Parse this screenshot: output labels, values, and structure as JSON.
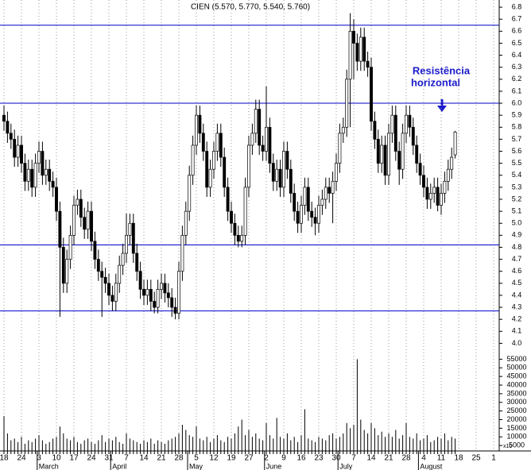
{
  "chart_data": {
    "type": "candlestick",
    "title": "CIEN (5.570, 5.770, 5.540, 5.760)",
    "annotation": [
      "Resistência",
      "horizontal"
    ],
    "volume_unit": "x10",
    "up_color": "#ffffff",
    "down_color": "#000000",
    "line_color": "#0000cc",
    "annotation_color": "#1a1acc",
    "categories": [
      "18",
      null,
      null,
      null,
      null,
      "24",
      null,
      null,
      null,
      null,
      "3",
      null,
      null,
      null,
      null,
      "10",
      null,
      null,
      null,
      null,
      "17",
      null,
      null,
      null,
      null,
      "24",
      null,
      null,
      null,
      null,
      "31",
      null,
      null,
      null,
      null,
      "7",
      null,
      null,
      null,
      null,
      "14",
      null,
      null,
      null,
      null,
      "21",
      null,
      null,
      null,
      null,
      "28",
      null,
      null,
      null,
      null,
      "5",
      null,
      null,
      null,
      null,
      "12",
      null,
      null,
      null,
      null,
      "19",
      null,
      null,
      null,
      null,
      "27",
      null,
      null,
      null,
      null,
      "2",
      null,
      null,
      null,
      null,
      "9",
      null,
      null,
      null,
      null,
      "16",
      null,
      null,
      null,
      null,
      "23",
      null,
      null,
      null,
      null,
      "30",
      null,
      null,
      null,
      null,
      "7",
      null,
      null,
      null,
      null,
      "14",
      null,
      null,
      null,
      null,
      "21",
      null,
      null,
      null,
      null,
      "28",
      null,
      null,
      null,
      null,
      "4",
      null,
      null,
      null,
      null,
      "11",
      null,
      null,
      null,
      null,
      "18",
      null,
      null,
      null,
      null,
      "25",
      null,
      null,
      null,
      null,
      "1"
    ],
    "months": [
      null,
      null,
      null,
      null,
      null,
      null,
      null,
      null,
      null,
      null,
      "March",
      null,
      null,
      null,
      null,
      null,
      null,
      null,
      null,
      null,
      null,
      null,
      null,
      null,
      null,
      null,
      null,
      null,
      null,
      null,
      null,
      "April",
      null,
      null,
      null,
      null,
      null,
      null,
      null,
      null,
      null,
      null,
      null,
      null,
      null,
      null,
      null,
      null,
      null,
      null,
      null,
      null,
      null,
      "May",
      null,
      null,
      null,
      null,
      null,
      null,
      null,
      null,
      null,
      null,
      null,
      null,
      null,
      null,
      null,
      null,
      null,
      null,
      null,
      null,
      null,
      "June",
      null,
      null,
      null,
      null,
      null,
      null,
      null,
      null,
      null,
      null,
      null,
      null,
      null,
      null,
      null,
      null,
      null,
      null,
      null,
      null,
      "July",
      null,
      null,
      null,
      null,
      null,
      null,
      null,
      null,
      null,
      null,
      null,
      null,
      null,
      null,
      null,
      null,
      null,
      null,
      null,
      null,
      null,
      null,
      "August",
      null,
      null,
      null,
      null,
      null,
      null,
      null,
      null,
      null,
      null,
      null,
      null,
      null,
      null,
      null,
      null,
      null,
      null,
      null,
      null,
      null
    ],
    "ohlc": [
      [
        5.9,
        5.98,
        5.77,
        5.85
      ],
      [
        5.85,
        5.93,
        5.67,
        5.75
      ],
      [
        5.75,
        5.83,
        5.62,
        5.7
      ],
      [
        5.7,
        5.78,
        5.47,
        5.55
      ],
      [
        5.55,
        5.73,
        5.47,
        5.65
      ],
      [
        5.65,
        5.73,
        5.42,
        5.5
      ],
      [
        5.5,
        5.58,
        5.27,
        5.35
      ],
      [
        5.35,
        5.53,
        5.27,
        5.45
      ],
      [
        5.45,
        5.53,
        5.22,
        5.3
      ],
      [
        5.3,
        5.58,
        5.22,
        5.5
      ],
      [
        5.5,
        5.68,
        5.42,
        5.6
      ],
      [
        5.6,
        5.68,
        5.32,
        5.4
      ],
      [
        5.4,
        5.53,
        5.32,
        5.45
      ],
      [
        5.45,
        5.53,
        5.27,
        5.35
      ],
      [
        5.35,
        5.43,
        5.22,
        5.3
      ],
      [
        5.3,
        5.38,
        5.02,
        5.1
      ],
      [
        5.1,
        5.18,
        4.22,
        4.8
      ],
      [
        4.8,
        4.88,
        4.42,
        4.5
      ],
      [
        4.5,
        4.78,
        4.42,
        4.7
      ],
      [
        4.7,
        4.98,
        4.62,
        4.9
      ],
      [
        4.9,
        5.23,
        4.82,
        5.15
      ],
      [
        5.15,
        5.28,
        5.07,
        5.2
      ],
      [
        5.2,
        5.28,
        4.97,
        5.05
      ],
      [
        5.05,
        5.13,
        4.87,
        4.95
      ],
      [
        4.95,
        5.18,
        4.87,
        5.1
      ],
      [
        5.1,
        5.18,
        4.77,
        4.85
      ],
      [
        4.85,
        4.93,
        4.62,
        4.7
      ],
      [
        4.7,
        4.78,
        4.52,
        4.6
      ],
      [
        4.6,
        4.68,
        4.22,
        4.55
      ],
      [
        4.55,
        4.63,
        4.42,
        4.5
      ],
      [
        4.5,
        4.58,
        4.32,
        4.4
      ],
      [
        4.4,
        4.48,
        4.27,
        4.35
      ],
      [
        4.35,
        4.58,
        4.27,
        4.5
      ],
      [
        4.5,
        4.73,
        4.42,
        4.65
      ],
      [
        4.65,
        4.83,
        4.57,
        4.75
      ],
      [
        4.75,
        5.08,
        4.67,
        4.9
      ],
      [
        4.9,
        5.08,
        4.82,
        5.0
      ],
      [
        5.0,
        5.08,
        4.67,
        4.75
      ],
      [
        4.75,
        4.83,
        4.52,
        4.6
      ],
      [
        4.6,
        4.68,
        4.37,
        4.45
      ],
      [
        4.45,
        4.53,
        4.32,
        4.4
      ],
      [
        4.4,
        4.53,
        4.32,
        4.45
      ],
      [
        4.45,
        4.53,
        4.27,
        4.35
      ],
      [
        4.35,
        4.43,
        4.25,
        4.3
      ],
      [
        4.3,
        4.53,
        4.25,
        4.45
      ],
      [
        4.45,
        4.58,
        4.37,
        4.5
      ],
      [
        4.5,
        4.58,
        4.34,
        4.42
      ],
      [
        4.42,
        4.5,
        4.3,
        4.38
      ],
      [
        4.38,
        4.46,
        4.22,
        4.3
      ],
      [
        4.3,
        4.38,
        4.2,
        4.25
      ],
      [
        4.25,
        4.68,
        4.2,
        4.6
      ],
      [
        4.6,
        4.98,
        4.52,
        4.9
      ],
      [
        4.9,
        5.18,
        4.82,
        5.1
      ],
      [
        5.1,
        5.48,
        5.02,
        5.4
      ],
      [
        5.4,
        5.73,
        5.32,
        5.65
      ],
      [
        5.65,
        5.98,
        5.57,
        5.9
      ],
      [
        5.9,
        5.98,
        5.67,
        5.75
      ],
      [
        5.75,
        5.83,
        5.52,
        5.6
      ],
      [
        5.6,
        5.68,
        5.22,
        5.3
      ],
      [
        5.3,
        5.53,
        5.22,
        5.45
      ],
      [
        5.45,
        5.68,
        5.37,
        5.6
      ],
      [
        5.6,
        5.83,
        5.52,
        5.75
      ],
      [
        5.75,
        5.83,
        5.47,
        5.55
      ],
      [
        5.55,
        5.63,
        5.22,
        5.3
      ],
      [
        5.3,
        5.38,
        5.02,
        5.1
      ],
      [
        5.1,
        5.18,
        4.92,
        5.0
      ],
      [
        5.0,
        5.08,
        4.82,
        4.9
      ],
      [
        4.9,
        4.98,
        4.8,
        4.85
      ],
      [
        4.85,
        4.98,
        4.8,
        4.9
      ],
      [
        4.9,
        5.38,
        4.82,
        5.3
      ],
      [
        5.3,
        5.73,
        5.22,
        5.65
      ],
      [
        5.65,
        5.83,
        5.57,
        5.75
      ],
      [
        5.75,
        6.03,
        5.67,
        5.95
      ],
      [
        5.95,
        6.03,
        5.57,
        5.65
      ],
      [
        5.65,
        5.73,
        5.52,
        5.6
      ],
      [
        5.6,
        6.14,
        5.52,
        5.8
      ],
      [
        5.8,
        5.88,
        5.42,
        5.5
      ],
      [
        5.5,
        5.58,
        5.27,
        5.35
      ],
      [
        5.35,
        5.53,
        5.27,
        5.45
      ],
      [
        5.45,
        5.53,
        5.22,
        5.3
      ],
      [
        5.3,
        5.68,
        5.22,
        5.6
      ],
      [
        5.6,
        5.68,
        5.37,
        5.45
      ],
      [
        5.45,
        5.53,
        5.17,
        5.25
      ],
      [
        5.25,
        5.33,
        5.02,
        5.1
      ],
      [
        5.1,
        5.18,
        4.92,
        5.0
      ],
      [
        5.0,
        5.23,
        4.92,
        5.15
      ],
      [
        5.15,
        5.38,
        5.07,
        5.3
      ],
      [
        5.3,
        5.38,
        5.02,
        5.1
      ],
      [
        5.1,
        5.18,
        4.97,
        5.05
      ],
      [
        5.05,
        5.13,
        4.9,
        5.0
      ],
      [
        5.0,
        5.23,
        4.92,
        5.15
      ],
      [
        5.15,
        5.28,
        5.07,
        5.2
      ],
      [
        5.2,
        5.38,
        5.12,
        5.3
      ],
      [
        5.3,
        5.38,
        5.17,
        5.25
      ],
      [
        5.25,
        5.43,
        5.0,
        5.35
      ],
      [
        5.35,
        5.58,
        5.27,
        5.5
      ],
      [
        5.5,
        5.83,
        5.42,
        5.75
      ],
      [
        5.75,
        5.88,
        5.67,
        5.8
      ],
      [
        5.8,
        6.28,
        5.72,
        6.2
      ],
      [
        6.2,
        6.75,
        5.8,
        6.6
      ],
      [
        6.6,
        6.7,
        6.2,
        6.5
      ],
      [
        6.5,
        6.58,
        6.27,
        6.35
      ],
      [
        6.35,
        6.63,
        6.27,
        6.55
      ],
      [
        6.55,
        6.63,
        6.27,
        6.35
      ],
      [
        6.35,
        6.43,
        6.22,
        6.3
      ],
      [
        6.3,
        6.38,
        5.77,
        5.85
      ],
      [
        5.85,
        5.93,
        5.62,
        5.7
      ],
      [
        5.7,
        5.78,
        5.42,
        5.5
      ],
      [
        5.5,
        5.73,
        5.42,
        5.65
      ],
      [
        5.65,
        5.73,
        5.32,
        5.4
      ],
      [
        5.4,
        5.83,
        5.32,
        5.75
      ],
      [
        5.75,
        5.98,
        5.67,
        5.9
      ],
      [
        5.9,
        5.98,
        5.52,
        5.6
      ],
      [
        5.6,
        5.68,
        5.32,
        5.45
      ],
      [
        5.45,
        5.83,
        5.37,
        5.75
      ],
      [
        5.75,
        5.98,
        5.67,
        5.9
      ],
      [
        5.9,
        5.98,
        5.72,
        5.8
      ],
      [
        5.8,
        5.88,
        5.57,
        5.65
      ],
      [
        5.65,
        5.73,
        5.42,
        5.5
      ],
      [
        5.5,
        5.58,
        5.32,
        5.4
      ],
      [
        5.4,
        5.48,
        5.22,
        5.3
      ],
      [
        5.3,
        5.38,
        5.12,
        5.2
      ],
      [
        5.2,
        5.33,
        5.12,
        5.25
      ],
      [
        5.25,
        5.38,
        5.17,
        5.3
      ],
      [
        5.3,
        5.38,
        5.1,
        5.15
      ],
      [
        5.15,
        5.33,
        5.07,
        5.25
      ],
      [
        5.25,
        5.43,
        5.17,
        5.35
      ],
      [
        5.35,
        5.53,
        5.27,
        5.45
      ],
      [
        5.45,
        5.63,
        5.37,
        5.55
      ],
      [
        5.57,
        5.77,
        5.54,
        5.76
      ],
      null,
      null,
      null,
      null,
      null,
      null,
      null,
      null,
      null,
      null,
      null
    ],
    "volume": [
      22000,
      12000,
      8000,
      9000,
      7000,
      10000,
      6000,
      8000,
      7000,
      9000,
      11000,
      8000,
      6000,
      7000,
      9000,
      10000,
      16000,
      12000,
      9000,
      8000,
      10000,
      7000,
      6000,
      8000,
      9000,
      7000,
      6000,
      8000,
      11000,
      7000,
      9000,
      8000,
      10000,
      7000,
      6000,
      12000,
      9000,
      8000,
      7000,
      6000,
      8000,
      7000,
      9000,
      6000,
      8000,
      7000,
      6000,
      8000,
      9000,
      10000,
      12000,
      17000,
      14000,
      11000,
      10000,
      16000,
      9000,
      8000,
      10000,
      7000,
      9000,
      11000,
      8000,
      7000,
      10000,
      9000,
      12000,
      16000,
      20000,
      11000,
      14000,
      10000,
      12000,
      9000,
      8000,
      18000,
      11000,
      9000,
      21000,
      10000,
      9000,
      12000,
      8000,
      10000,
      7000,
      11000,
      26000,
      9000,
      8000,
      7000,
      10000,
      9000,
      8000,
      11000,
      12000,
      9000,
      10000,
      12000,
      18000,
      15000,
      17000,
      55000,
      20000,
      14000,
      12000,
      18000,
      15000,
      11000,
      13000,
      10000,
      12000,
      10000,
      14000,
      9000,
      11000,
      18000,
      10000,
      9000,
      12000,
      8000,
      9000,
      11000,
      7000,
      8000,
      10000,
      9000,
      12000,
      8000,
      10000,
      9000,
      null,
      null,
      null,
      null,
      null,
      null,
      null,
      null,
      null,
      null,
      null
    ],
    "hlines": [
      6.65,
      6.0,
      4.82,
      4.27
    ],
    "ylim": [
      3.95,
      6.86
    ],
    "yticks": [
      {
        "value": 4,
        "label": "4.0"
      },
      4.1,
      4.2,
      4.3,
      4.4,
      4.5,
      4.6,
      4.7,
      4.8,
      4.9,
      {
        "value": 5,
        "label": "5.0"
      },
      5.1,
      5.2,
      5.3,
      5.4,
      5.5,
      5.6,
      5.7,
      5.8,
      5.9,
      {
        "value": 6,
        "label": "6.0"
      },
      6.1,
      6.2,
      6.3,
      6.4,
      6.5,
      6.6,
      6.7,
      6.8
    ],
    "vlim": [
      0,
      57500
    ],
    "vticks": [
      5000,
      10000,
      15000,
      20000,
      25000,
      30000,
      35000,
      40000,
      45000,
      50000,
      55000
    ],
    "grid": true
  }
}
